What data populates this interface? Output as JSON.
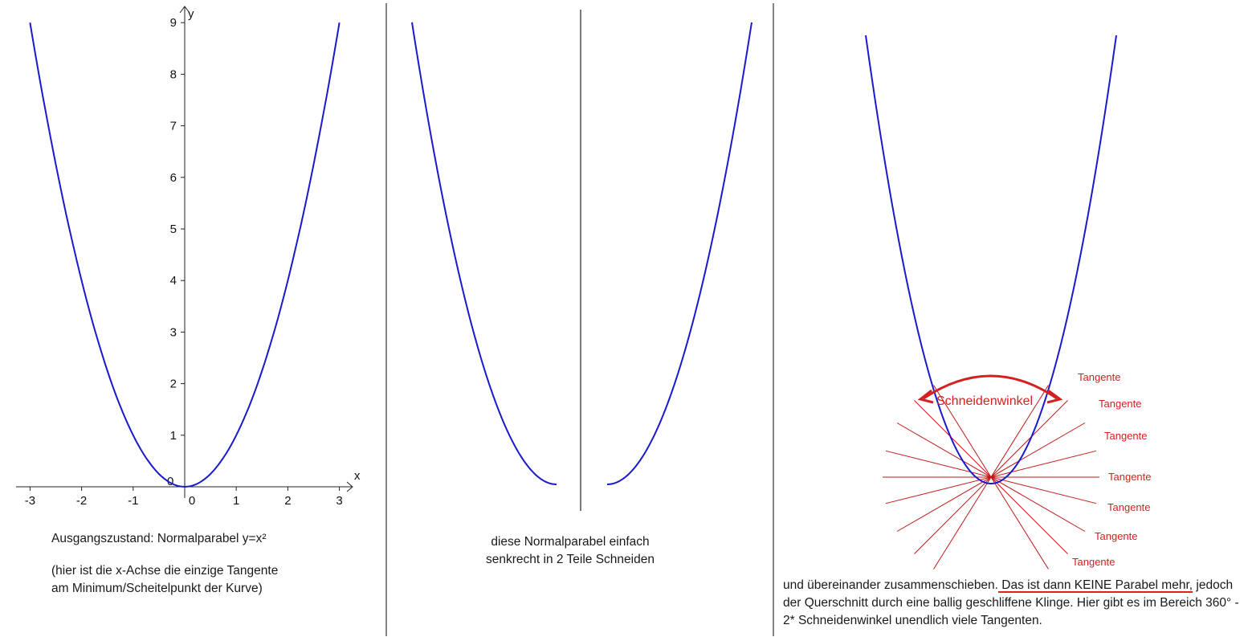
{
  "panel_left": {
    "axis_x_label": "x",
    "axis_y_label": "y",
    "x_ticks": [
      "-3",
      "-2",
      "-1",
      "0",
      "1",
      "2",
      "3"
    ],
    "y_ticks": [
      "1",
      "2",
      "3",
      "4",
      "5",
      "6",
      "7",
      "8",
      "9"
    ],
    "origin_label": "0",
    "caption_line1": "Ausgangszustand: Normalparabel y=x²",
    "caption_line2": "(hier ist die x-Achse die einzige Tangente",
    "caption_line3": "am Minimum/Scheitelpunkt der Kurve)"
  },
  "panel_middle": {
    "caption_line1": "diese Normalparabel einfach",
    "caption_line2": "senkrecht in 2 Teile Schneiden"
  },
  "panel_right": {
    "angle_label": "Schneidenwinkel",
    "tangent_labels": [
      "Tangente",
      "Tangente",
      "Tangente",
      "Tangente",
      "Tangente",
      "Tangente",
      "Tangente"
    ],
    "caption_part1": "und übereinander zusammenschieben.",
    "caption_part2": " Das ist dann KEINE Parabel mehr,",
    "caption_part3": " jedoch der Querschnitt durch eine ballig geschliffene Klinge. Hier gibt es im Bereich 360° - 2* Schneidenwinkel unendlich viele Tangenten."
  },
  "colors": {
    "curve": "#1a1acc",
    "annotation": "#d42020",
    "tangent_line": "#c01818",
    "axis": "#222222"
  }
}
